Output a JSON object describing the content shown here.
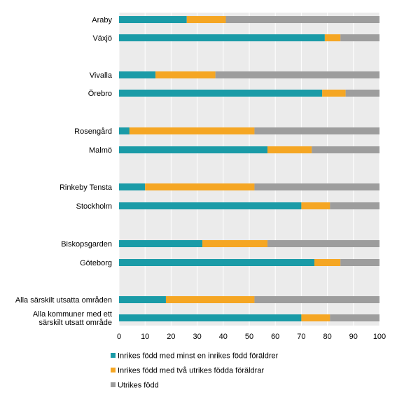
{
  "chart_data": {
    "type": "bar",
    "orientation": "horizontal",
    "stacked": true,
    "title": "",
    "xlabel": "",
    "ylabel": "",
    "xlim": [
      0,
      100
    ],
    "x_ticks": [
      0,
      10,
      20,
      30,
      40,
      50,
      60,
      70,
      80,
      90,
      100
    ],
    "grid": "vertical",
    "legend_position": "bottom",
    "categories": [
      [
        "Araby"
      ],
      [
        "Växjö"
      ],
      [
        "Vivalla"
      ],
      [
        "Örebro"
      ],
      [
        "Rosengård"
      ],
      [
        "Malmö"
      ],
      [
        "Rinkeby Tensta"
      ],
      [
        "Stockholm"
      ],
      [
        "Biskopsgarden"
      ],
      [
        "Göteborg"
      ],
      [
        "Alla särskilt utsatta områden"
      ],
      [
        "Alla kommuner med ett",
        "särskilt utsatt område"
      ]
    ],
    "series": [
      {
        "name": "Inrikes född med minst en inrikes född föräldrer",
        "color": "#1a9ba7",
        "values": [
          26,
          79,
          14,
          78,
          4,
          57,
          10,
          70,
          32,
          75,
          18,
          70
        ]
      },
      {
        "name": "Inrikes född med två utrikes födda föräldrar",
        "color": "#f5a623",
        "values": [
          15,
          6,
          23,
          9,
          48,
          17,
          42,
          11,
          25,
          10,
          34,
          11
        ]
      },
      {
        "name": "Utrikes född",
        "color": "#9d9d9d",
        "values": [
          59,
          15,
          63,
          13,
          48,
          26,
          48,
          19,
          43,
          15,
          48,
          19
        ]
      }
    ]
  }
}
